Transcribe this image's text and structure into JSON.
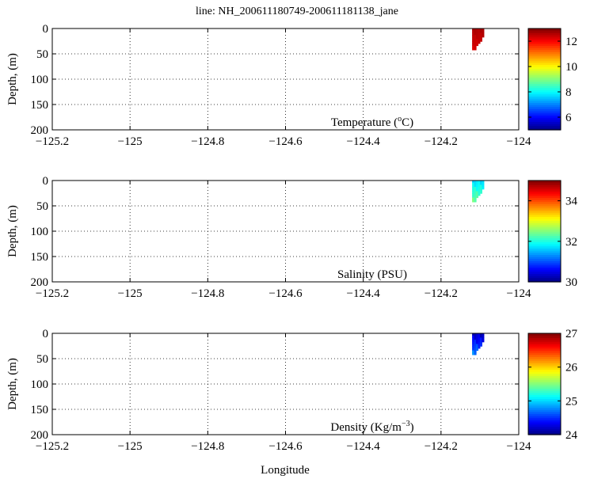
{
  "title": "line: NH_200611180749-200611181138_jane",
  "xlabel": "Longitude",
  "chart_data": [
    {
      "type": "heatmap",
      "name": "temperature",
      "ylabel": "Depth, (m)",
      "label": {
        "pre": "Temperature (",
        "sup": "o",
        "post": "C)"
      },
      "xlim": [
        -125.2,
        -124
      ],
      "ylim": [
        0,
        200
      ],
      "y_reversed": true,
      "grid": true,
      "xticks": [
        "-125.2",
        "-125",
        "-124.8",
        "-124.6",
        "-124.4",
        "-124.2",
        "-124"
      ],
      "yticks": [
        "0",
        "50",
        "100",
        "150",
        "200"
      ],
      "colorbar": {
        "range": [
          5,
          13
        ],
        "ticks": [
          "12",
          "10",
          "8",
          "6"
        ],
        "tick_values": [
          12,
          10,
          8,
          6
        ]
      },
      "patch": {
        "lon_range": [
          -124.12,
          -124.09
        ],
        "depth_range": [
          0,
          42
        ],
        "value_range": [
          12.2,
          12.7
        ]
      }
    },
    {
      "type": "heatmap",
      "name": "salinity",
      "ylabel": "Depth, (m)",
      "label": {
        "pre": "Salinity (PSU)",
        "sup": "",
        "post": ""
      },
      "xlim": [
        -125.2,
        -124
      ],
      "ylim": [
        0,
        200
      ],
      "y_reversed": true,
      "grid": true,
      "xticks": [
        "-125.2",
        "-125",
        "-124.8",
        "-124.6",
        "-124.4",
        "-124.2",
        "-124"
      ],
      "yticks": [
        "0",
        "50",
        "100",
        "150",
        "200"
      ],
      "colorbar": {
        "range": [
          30,
          35
        ],
        "ticks": [
          "34",
          "32",
          "30"
        ],
        "tick_values": [
          34,
          32,
          30
        ]
      },
      "patch": {
        "lon_range": [
          -124.12,
          -124.09
        ],
        "depth_range": [
          0,
          42
        ],
        "value_range": [
          31.6,
          32.6
        ]
      }
    },
    {
      "type": "heatmap",
      "name": "density",
      "ylabel": "Depth, (m)",
      "label": {
        "pre": "Density (Kg/m",
        "sup": "−3",
        "post": ")"
      },
      "xlim": [
        -125.2,
        -124
      ],
      "ylim": [
        0,
        200
      ],
      "y_reversed": true,
      "grid": true,
      "xticks": [
        "-125.2",
        "-125",
        "-124.8",
        "-124.6",
        "-124.4",
        "-124.2",
        "-124"
      ],
      "yticks": [
        "0",
        "50",
        "100",
        "150",
        "200"
      ],
      "colorbar": {
        "range": [
          24,
          27
        ],
        "ticks": [
          "27",
          "26",
          "25",
          "24"
        ],
        "tick_values": [
          27,
          26,
          25,
          24
        ]
      },
      "patch": {
        "lon_range": [
          -124.12,
          -124.09
        ],
        "depth_range": [
          0,
          42
        ],
        "value_range": [
          24.1,
          24.9
        ]
      }
    }
  ]
}
